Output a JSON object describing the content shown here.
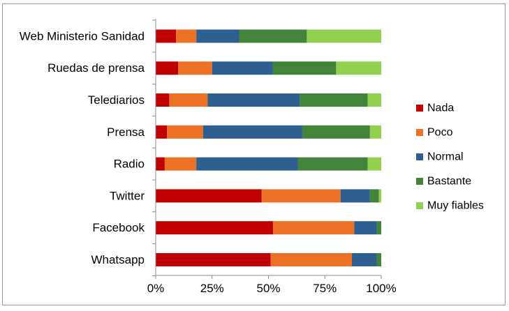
{
  "chart_data": {
    "type": "bar",
    "orientation": "horizontal",
    "stacked": "percent",
    "categories": [
      "Web Ministerio Sanidad",
      "Ruedas de prensa",
      "Telediarios",
      "Prensa",
      "Radio",
      "Twitter",
      "Facebook",
      "Whatsapp"
    ],
    "series": [
      {
        "name": "Nada",
        "color": "#c00000",
        "values": [
          9,
          10,
          6,
          5,
          4,
          47,
          52,
          51
        ]
      },
      {
        "name": "Poco",
        "color": "#ed7125",
        "values": [
          9,
          15,
          17,
          16,
          14,
          35,
          36,
          36
        ]
      },
      {
        "name": "Normal",
        "color": "#2e5f91",
        "values": [
          19,
          27,
          41,
          44,
          45,
          13,
          10,
          11
        ]
      },
      {
        "name": "Bastante",
        "color": "#43843b",
        "values": [
          30,
          28,
          30,
          30,
          31,
          4,
          2,
          2
        ]
      },
      {
        "name": "Muy fiables",
        "color": "#92d050",
        "values": [
          33,
          20,
          6,
          5,
          6,
          1,
          0,
          0
        ]
      }
    ],
    "x_ticks": [
      "0%",
      "25%",
      "50%",
      "75%",
      "100%"
    ],
    "xlim": [
      0,
      100
    ],
    "grid": false,
    "legend_position": "right"
  }
}
